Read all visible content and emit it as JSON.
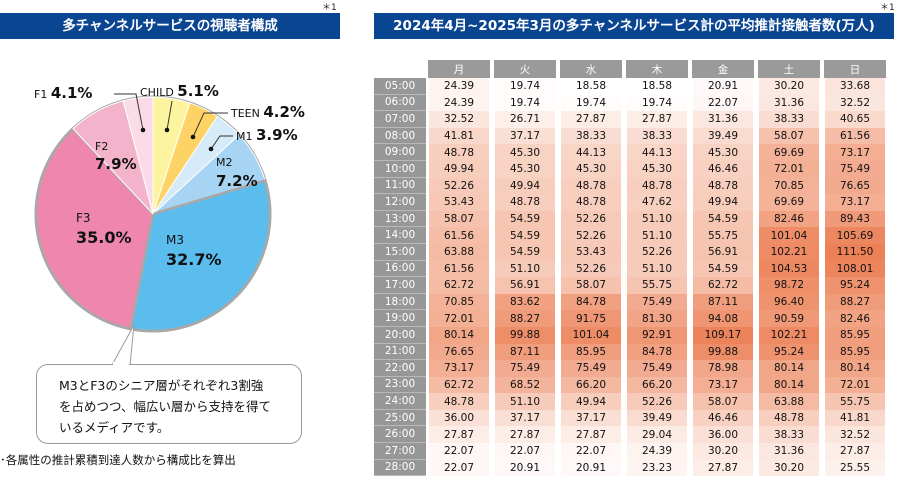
{
  "left_panel": {
    "title": "多チャンネルサービスの視聴者構成",
    "note_mark": "＊1",
    "bubble_text_lines": [
      "M3とF3のシニア層がそれぞれ3割強",
      "を占めつつ、幅広い層から支持を得て",
      "いるメディアです。"
    ],
    "footnote": "･各属性の推計累積到達人数から構成比を算出"
  },
  "right_panel": {
    "title": "2024年4月~2025年3月の多チャンネルサービス計の平均推計接触者数(万人)",
    "note_mark": "＊1"
  },
  "chart_data": [
    {
      "type": "pie",
      "title": "多チャンネルサービスの視聴者構成",
      "unit": "%",
      "start": "12 o'clock, clockwise",
      "slices": [
        {
          "label": "CHILD",
          "value": 5.1,
          "value_text": "5.1%",
          "color": "#fdf4a0"
        },
        {
          "label": "TEEN",
          "value": 4.2,
          "value_text": "4.2%",
          "color": "#fcd364"
        },
        {
          "label": "M1",
          "value": 3.9,
          "value_text": "3.9%",
          "color": "#d5ebf9"
        },
        {
          "label": "M2",
          "value": 7.2,
          "value_text": "7.2%",
          "color": "#a6d4f2"
        },
        {
          "label": "M3",
          "value": 32.7,
          "value_text": "32.7%",
          "color": "#5bbcee"
        },
        {
          "label": "F3",
          "value": 35.0,
          "value_text": "35.0%",
          "color": "#ef86ad"
        },
        {
          "label": "F2",
          "value": 7.9,
          "value_text": "7.9%",
          "color": "#f3b4cb"
        },
        {
          "label": "F1",
          "value": 4.1,
          "value_text": "4.1%",
          "color": "#fadbe7"
        }
      ],
      "border_color": "#a8a8a8"
    },
    {
      "type": "heatmap",
      "title": "2024年4月~2025年3月の多チャンネルサービス計の平均推計接触者数(万人)",
      "unit": "万人",
      "columns": [
        "月",
        "火",
        "水",
        "木",
        "金",
        "土",
        "日"
      ],
      "rows": [
        "05:00",
        "06:00",
        "07:00",
        "08:00",
        "09:00",
        "10:00",
        "11:00",
        "12:00",
        "13:00",
        "14:00",
        "15:00",
        "16:00",
        "17:00",
        "18:00",
        "19:00",
        "20:00",
        "21:00",
        "22:00",
        "23:00",
        "24:00",
        "25:00",
        "26:00",
        "27:00",
        "28:00"
      ],
      "values": [
        [
          24.39,
          19.74,
          18.58,
          18.58,
          20.91,
          30.2,
          33.68
        ],
        [
          24.39,
          19.74,
          19.74,
          19.74,
          22.07,
          31.36,
          32.52
        ],
        [
          32.52,
          26.71,
          27.87,
          27.87,
          31.36,
          38.33,
          40.65
        ],
        [
          41.81,
          37.17,
          38.33,
          38.33,
          39.49,
          58.07,
          61.56
        ],
        [
          48.78,
          45.3,
          44.13,
          44.13,
          45.3,
          69.69,
          73.17
        ],
        [
          49.94,
          45.3,
          45.3,
          45.3,
          46.46,
          72.01,
          75.49
        ],
        [
          52.26,
          49.94,
          48.78,
          48.78,
          48.78,
          70.85,
          76.65
        ],
        [
          53.43,
          48.78,
          48.78,
          47.62,
          49.94,
          69.69,
          73.17
        ],
        [
          58.07,
          54.59,
          52.26,
          51.1,
          54.59,
          82.46,
          89.43
        ],
        [
          61.56,
          54.59,
          52.26,
          51.1,
          55.75,
          101.04,
          105.69
        ],
        [
          63.88,
          54.59,
          53.43,
          52.26,
          56.91,
          102.21,
          111.5
        ],
        [
          61.56,
          51.1,
          52.26,
          51.1,
          54.59,
          104.53,
          108.01
        ],
        [
          62.72,
          56.91,
          58.07,
          55.75,
          62.72,
          98.72,
          95.24
        ],
        [
          70.85,
          83.62,
          84.78,
          75.49,
          87.11,
          96.4,
          88.27
        ],
        [
          72.01,
          88.27,
          91.75,
          81.3,
          94.08,
          90.59,
          82.46
        ],
        [
          80.14,
          99.88,
          101.04,
          92.91,
          109.17,
          102.21,
          85.95
        ],
        [
          76.65,
          87.11,
          85.95,
          84.78,
          99.88,
          95.24,
          85.95
        ],
        [
          73.17,
          75.49,
          75.49,
          75.49,
          78.98,
          80.14,
          80.14
        ],
        [
          62.72,
          68.52,
          66.2,
          66.2,
          73.17,
          80.14,
          72.01
        ],
        [
          48.78,
          51.1,
          49.94,
          52.26,
          58.07,
          63.88,
          55.75
        ],
        [
          36.0,
          37.17,
          37.17,
          39.49,
          46.46,
          48.78,
          41.81
        ],
        [
          27.87,
          27.87,
          27.87,
          29.04,
          36.0,
          38.33,
          32.52
        ],
        [
          22.07,
          22.07,
          22.07,
          24.39,
          30.2,
          31.36,
          27.87
        ],
        [
          22.07,
          20.91,
          20.91,
          23.23,
          27.87,
          30.2,
          25.55
        ]
      ],
      "color_scale": {
        "low": "#ffffff",
        "high": "#ee8a62",
        "min": 18.58,
        "max": 111.5
      }
    }
  ]
}
